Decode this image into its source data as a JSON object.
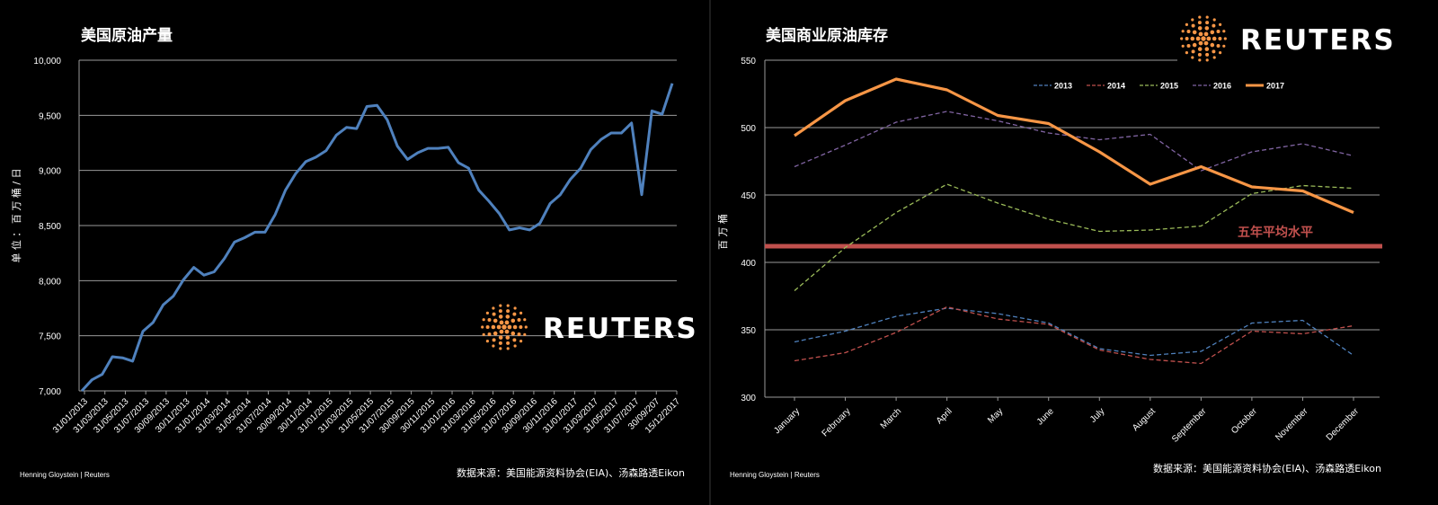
{
  "chart_data": [
    {
      "type": "line",
      "title": "美国原油产量",
      "ylabel": "单 位 ： 百 万 桶 / 日",
      "ylim": [
        7000,
        10000
      ],
      "yticks": [
        "7,000",
        "7,500",
        "8,000",
        "8,500",
        "9,000",
        "9,500",
        "10,000"
      ],
      "xticks": [
        "31/01/2013",
        "31/03/2013",
        "31/05/2013",
        "31/07/2013",
        "30/09/2013",
        "30/11/2013",
        "31/01/2014",
        "31/03/2014",
        "31/05/2014",
        "31/07/2014",
        "30/09/2014",
        "30/11/2014",
        "31/01/2015",
        "31/03/2015",
        "31/05/2015",
        "31/07/2015",
        "30/09/2015",
        "30/11/2015",
        "31/01/2016",
        "31/03/2016",
        "31/05/2016",
        "31/07/2016",
        "30/09/2016",
        "30/11/2016",
        "31/01/2017",
        "31/03/2017",
        "31/05/2017",
        "31/07/2017",
        "30/09/207",
        "15/12/2017"
      ],
      "color": "#4f81bd",
      "values": [
        7000,
        7100,
        7150,
        7310,
        7300,
        7270,
        7540,
        7620,
        7780,
        7860,
        8010,
        8120,
        8050,
        8080,
        8200,
        8350,
        8390,
        8440,
        8440,
        8600,
        8820,
        8970,
        9080,
        9120,
        9180,
        9320,
        9390,
        9380,
        9580,
        9590,
        9460,
        9220,
        9100,
        9160,
        9200,
        9200,
        9210,
        9070,
        9020,
        8820,
        8720,
        8610,
        8460,
        8480,
        8460,
        8520,
        8700,
        8780,
        8920,
        9020,
        9190,
        9280,
        9340,
        9340,
        9430,
        8780,
        9540,
        9510,
        9790
      ],
      "credit": "Henning Gloystein | Reuters",
      "source": "数据来源：美国能源资料协会(EIA)、汤森路透Eikon"
    },
    {
      "type": "line",
      "title": "美国商业原油库存",
      "ylabel": "百 万 桶",
      "ylim": [
        300,
        550
      ],
      "yticks": [
        "300",
        "350",
        "400",
        "450",
        "500",
        "550"
      ],
      "categories": [
        "January",
        "February",
        "March",
        "April",
        "May",
        "June",
        "July",
        "August",
        "September",
        "October",
        "November",
        "December"
      ],
      "series": [
        {
          "name": "2013",
          "color": "#4f81bd",
          "dashed": true,
          "values": [
            341,
            349,
            360,
            366,
            362,
            355,
            336,
            331,
            334,
            355,
            357,
            331
          ]
        },
        {
          "name": "2014",
          "color": "#c0504d",
          "dashed": true,
          "values": [
            327,
            333,
            348,
            367,
            358,
            354,
            335,
            328,
            325,
            349,
            347,
            353
          ]
        },
        {
          "name": "2015",
          "color": "#9bbb59",
          "dashed": true,
          "values": [
            379,
            411,
            437,
            458,
            444,
            432,
            423,
            424,
            427,
            451,
            457,
            455
          ]
        },
        {
          "name": "2016",
          "color": "#8064a2",
          "dashed": true,
          "values": [
            471,
            487,
            504,
            512,
            505,
            496,
            491,
            495,
            468,
            482,
            488,
            479
          ]
        },
        {
          "name": "2017",
          "color": "#f79646",
          "dashed": false,
          "values": [
            494,
            520,
            536,
            528,
            509,
            503,
            482,
            458,
            471,
            456,
            453,
            437
          ]
        }
      ],
      "average": {
        "label": "五年平均水平",
        "value": 412,
        "color": "#c0504d"
      },
      "credit": "Henning Gloystein | Reuters",
      "source": "数据来源：美国能源资料协会(EIA)、汤森路透Eikon"
    }
  ],
  "brand": {
    "name": "REUTERS",
    "dot_color": "#f79646"
  }
}
